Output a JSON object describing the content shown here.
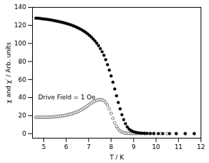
{
  "chart_data": {
    "type": "scatter",
    "xlabel": "T / K",
    "ylabel": "χ and χ′ / Arb. units",
    "xlim": [
      4.5,
      12.0
    ],
    "ylim": [
      -5,
      140
    ],
    "xticks": [
      5,
      6,
      7,
      8,
      9,
      10,
      11,
      12
    ],
    "yticks": [
      0,
      20,
      40,
      60,
      80,
      100,
      120,
      140
    ],
    "annotations": [
      {
        "text": "Drive Field = 1 Oe",
        "x": 4.75,
        "y": 40
      }
    ],
    "series": [
      {
        "color": "#000000",
        "marker": "filled_circle",
        "x": [
          4.65,
          4.72,
          4.8,
          4.88,
          4.96,
          5.04,
          5.12,
          5.2,
          5.28,
          5.36,
          5.44,
          5.52,
          5.6,
          5.68,
          5.76,
          5.84,
          5.92,
          6.0,
          6.08,
          6.16,
          6.24,
          6.32,
          6.4,
          6.48,
          6.56,
          6.64,
          6.72,
          6.8,
          6.88,
          6.96,
          7.04,
          7.12,
          7.2,
          7.28,
          7.36,
          7.44,
          7.52,
          7.6,
          7.68,
          7.76,
          7.84,
          7.92,
          8.0,
          8.08,
          8.16,
          8.24,
          8.32,
          8.4,
          8.48,
          8.56,
          8.64,
          8.72,
          8.8,
          8.88,
          8.96,
          9.04,
          9.12,
          9.2,
          9.3,
          9.4,
          9.5,
          9.6,
          9.75,
          9.9,
          10.1,
          10.3,
          10.6,
          10.9,
          11.3,
          11.7
        ],
        "values": [
          128.0,
          128.0,
          127.8,
          127.5,
          127.3,
          127.0,
          126.8,
          126.5,
          126.2,
          125.8,
          125.4,
          125.0,
          124.6,
          124.2,
          123.8,
          123.3,
          122.8,
          122.2,
          121.6,
          121.0,
          120.3,
          119.5,
          118.7,
          117.8,
          116.8,
          115.8,
          114.7,
          113.4,
          112.0,
          110.5,
          108.8,
          107.0,
          105.0,
          102.8,
          100.3,
          97.5,
          94.3,
          90.8,
          86.8,
          82.0,
          76.5,
          70.5,
          64.0,
          57.0,
          49.5,
          42.0,
          34.5,
          27.5,
          21.0,
          15.5,
          11.0,
          7.5,
          5.0,
          3.5,
          2.5,
          1.8,
          1.3,
          1.0,
          0.7,
          0.5,
          0.4,
          0.3,
          0.2,
          0.15,
          0.1,
          0.1,
          0.05,
          0.05,
          0.05,
          0.05
        ]
      },
      {
        "color": "#555555",
        "marker": "open_circle",
        "x": [
          4.65,
          4.72,
          4.8,
          4.88,
          4.96,
          5.04,
          5.12,
          5.2,
          5.28,
          5.36,
          5.44,
          5.52,
          5.6,
          5.68,
          5.76,
          5.84,
          5.92,
          6.0,
          6.08,
          6.16,
          6.24,
          6.32,
          6.4,
          6.48,
          6.56,
          6.64,
          6.72,
          6.8,
          6.88,
          6.96,
          7.04,
          7.12,
          7.2,
          7.28,
          7.36,
          7.44,
          7.52,
          7.6,
          7.68,
          7.76,
          7.84,
          7.92,
          8.0,
          8.08,
          8.16,
          8.24,
          8.32,
          8.4,
          8.48,
          8.56,
          8.64,
          8.72,
          8.8,
          8.88,
          8.96,
          9.04,
          9.15,
          9.3,
          9.5,
          9.7,
          9.9,
          10.2,
          10.5,
          10.9,
          11.3,
          11.7
        ],
        "values": [
          18.2,
          18.2,
          18.2,
          18.2,
          18.2,
          18.2,
          18.2,
          18.2,
          18.3,
          18.5,
          18.6,
          18.8,
          19.0,
          19.2,
          19.5,
          19.8,
          20.1,
          20.5,
          21.0,
          21.5,
          22.0,
          22.7,
          23.4,
          24.2,
          25.0,
          26.0,
          27.0,
          28.2,
          29.5,
          31.0,
          32.5,
          33.8,
          35.0,
          36.2,
          37.0,
          37.5,
          37.8,
          37.5,
          36.5,
          34.5,
          31.5,
          27.5,
          22.5,
          17.0,
          12.0,
          8.0,
          5.0,
          3.0,
          1.8,
          1.0,
          0.6,
          0.4,
          0.25,
          0.15,
          0.1,
          0.1,
          0.05,
          0.05,
          0.05,
          0.05,
          0.05,
          0.05,
          0.05,
          0.05,
          0.05,
          0.05
        ]
      }
    ]
  }
}
